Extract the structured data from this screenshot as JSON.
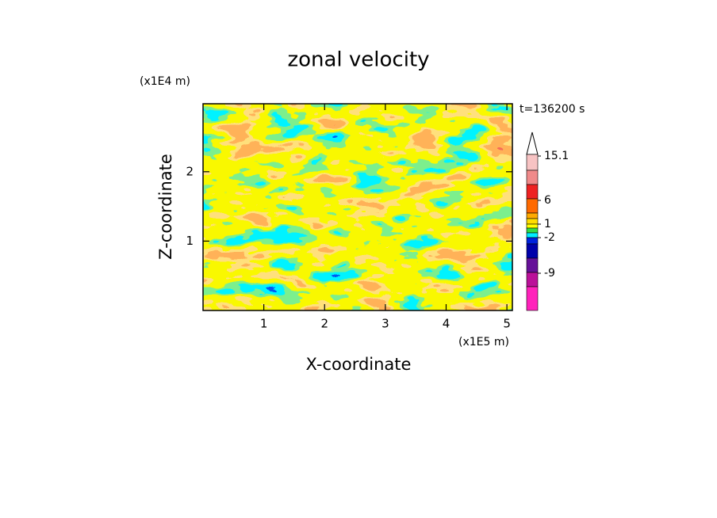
{
  "chart_data": {
    "type": "contour",
    "title": "zonal velocity",
    "x_label": "X-coordinate",
    "y_label": "Z-coordinate",
    "x_unit": "(x1E5 m)",
    "y_unit": "(x1E4 m)",
    "annotation": "t=136200 s",
    "xlim": [
      0,
      5.09
    ],
    "xticks": [
      1,
      2,
      3,
      4,
      5
    ],
    "ylim": [
      0,
      2.98
    ],
    "yticks": [
      1,
      2
    ],
    "colorbar_colors": [
      "#f7c3c3",
      "#f08a8a",
      "#ee2222",
      "#ff6a00",
      "#ffaa00",
      "#ffdd00",
      "#ffff00",
      "#33dd44",
      "#00eeff",
      "#0022dd",
      "#0000aa",
      "#661199",
      "#bb1199",
      "#ff22bb"
    ],
    "colorbar_labels": [
      15.1,
      6,
      1,
      -2,
      -9
    ]
  }
}
